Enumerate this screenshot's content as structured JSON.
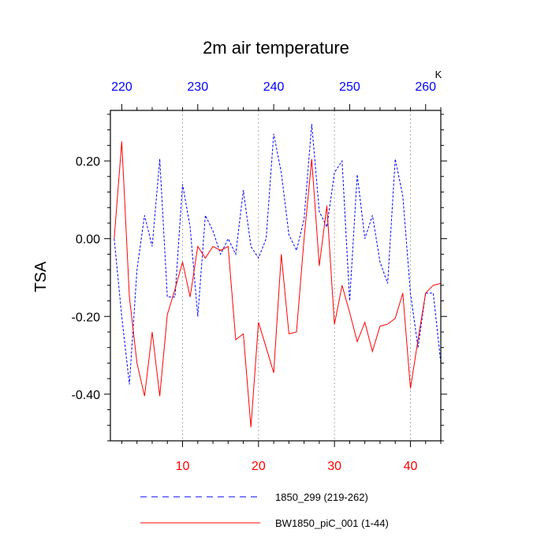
{
  "chart_data": {
    "type": "line",
    "title": "2m air temperature",
    "ylabel": "TSA",
    "top_axis_unit": "K",
    "bottom_axis": {
      "range": [
        0.5,
        44
      ],
      "ticks": [
        10,
        20,
        30,
        40
      ],
      "tick_labels": [
        "10",
        "20",
        "30",
        "40"
      ],
      "color": "#ff0000"
    },
    "top_axis": {
      "range": [
        218.5,
        262
      ],
      "ticks": [
        220,
        230,
        240,
        250,
        260
      ],
      "tick_labels": [
        "220",
        "230",
        "240",
        "250",
        "260"
      ],
      "color": "#0000ff"
    },
    "y_axis": {
      "range": [
        -0.52,
        0.33
      ],
      "ticks": [
        0.2,
        0.0,
        -0.2,
        -0.4
      ],
      "tick_labels": [
        "0.20",
        "0.00",
        "-0.20",
        "-0.40"
      ]
    },
    "grid": "vertical dotted at bottom-axis ticks",
    "series": [
      {
        "name": "1850_299 (219-262)",
        "color": "#0000ff",
        "style": "dashed",
        "axis": "top",
        "x": [
          219,
          220,
          221,
          222,
          223,
          224,
          225,
          226,
          227,
          228,
          229,
          230,
          231,
          232,
          233,
          234,
          235,
          236,
          237,
          238,
          239,
          240,
          241,
          242,
          243,
          244,
          245,
          246,
          247,
          248,
          249,
          250,
          251,
          252,
          253,
          254,
          255,
          256,
          257,
          258,
          259,
          260,
          261,
          262
        ],
        "values": [
          0.0,
          -0.2,
          -0.375,
          -0.08,
          0.06,
          -0.02,
          0.205,
          -0.15,
          -0.15,
          0.14,
          0.03,
          -0.2,
          0.06,
          0.02,
          -0.04,
          0.0,
          -0.04,
          0.125,
          -0.02,
          -0.05,
          0.0,
          0.27,
          0.17,
          0.01,
          -0.03,
          0.05,
          0.295,
          0.07,
          0.03,
          0.17,
          0.2,
          -0.16,
          0.165,
          0.0,
          0.06,
          -0.06,
          -0.115,
          0.205,
          0.11,
          -0.14,
          -0.28,
          -0.14,
          -0.14,
          -0.32
        ]
      },
      {
        "name": "BW1850_piC_001 (1-44)",
        "color": "#ff0000",
        "style": "solid",
        "axis": "bottom",
        "x": [
          1,
          2,
          3,
          4,
          5,
          6,
          7,
          8,
          9,
          10,
          11,
          12,
          13,
          14,
          15,
          16,
          17,
          18,
          19,
          20,
          21,
          22,
          23,
          24,
          25,
          26,
          27,
          28,
          29,
          30,
          31,
          32,
          33,
          34,
          35,
          36,
          37,
          38,
          39,
          40,
          41,
          42,
          43,
          44
        ],
        "values": [
          0.0,
          0.25,
          -0.15,
          -0.32,
          -0.405,
          -0.24,
          -0.405,
          -0.195,
          -0.13,
          -0.06,
          -0.15,
          -0.02,
          -0.05,
          -0.02,
          -0.03,
          -0.02,
          -0.26,
          -0.245,
          -0.485,
          -0.215,
          -0.28,
          -0.345,
          -0.04,
          -0.245,
          -0.24,
          0.0,
          0.205,
          -0.07,
          0.085,
          -0.22,
          -0.12,
          -0.19,
          -0.265,
          -0.215,
          -0.29,
          -0.225,
          -0.22,
          -0.205,
          -0.14,
          -0.385,
          -0.26,
          -0.14,
          -0.12,
          -0.115
        ]
      }
    ],
    "legend": {
      "placement": "bottom",
      "entries": [
        "1850_299 (219-262)",
        "BW1850_piC_001 (1-44)"
      ]
    }
  }
}
